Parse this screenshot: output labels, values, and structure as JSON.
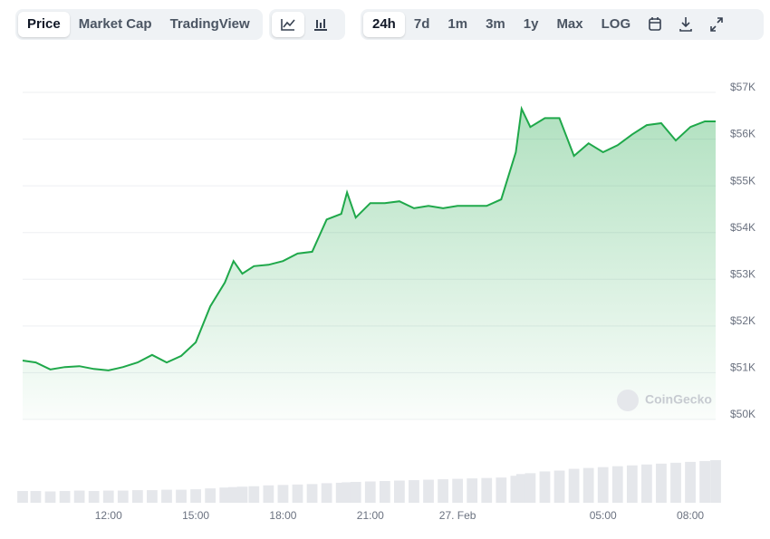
{
  "toolbar": {
    "views": [
      "Price",
      "Market Cap",
      "TradingView"
    ],
    "ranges": [
      "24h",
      "7d",
      "1m",
      "3m",
      "1y",
      "Max",
      "LOG"
    ]
  },
  "chart_data": {
    "type": "line",
    "watermark": "CoinGecko",
    "x": [
      9.05,
      9.5,
      10,
      10.5,
      11,
      11.5,
      12,
      12.5,
      13,
      13.5,
      14,
      14.5,
      15,
      15.5,
      16,
      16.3,
      16.6,
      17,
      17.5,
      18,
      18.5,
      19,
      19.5,
      20,
      20.2,
      20.5,
      21,
      21.5,
      22,
      22.5,
      23,
      23.5,
      24,
      24.5,
      25,
      25.5,
      26,
      26.2,
      26.5,
      27,
      27.5,
      28,
      28.5,
      29,
      29.5,
      30,
      30.5,
      31,
      31.5,
      32,
      32.5,
      32.87
    ],
    "series": [
      {
        "color": "#1fa84a",
        "values": [
          51260,
          51220,
          51070,
          51120,
          51140,
          51080,
          51050,
          51120,
          51220,
          51380,
          51220,
          51360,
          51650,
          52420,
          52930,
          53390,
          53120,
          53280,
          53310,
          53390,
          53550,
          53590,
          54280,
          54400,
          54860,
          54320,
          54630,
          54630,
          54670,
          54520,
          54570,
          54520,
          54570,
          54570,
          54570,
          54710,
          55720,
          56650,
          56260,
          56450,
          56450,
          55640,
          55910,
          55720,
          55870,
          56100,
          56300,
          56340,
          55970,
          56260,
          56380,
          56380
        ]
      }
    ],
    "volume": [
      27,
      27,
      26,
      27,
      28,
      27,
      28,
      28,
      29,
      29,
      30,
      30,
      31,
      33,
      35,
      36,
      37,
      38,
      40,
      41,
      42,
      43,
      45,
      46,
      47,
      48,
      49,
      50,
      51,
      52,
      53,
      54,
      55,
      56,
      57,
      58,
      62,
      66,
      68,
      72,
      74,
      78,
      80,
      82,
      84,
      86,
      88,
      90,
      92,
      94,
      96,
      98
    ],
    "volume_lim": [
      0,
      100
    ],
    "xlim": [
      9.05,
      32.87
    ],
    "ylim": [
      50000,
      57000
    ],
    "xticks": [
      {
        "value": 12,
        "label": "12:00"
      },
      {
        "value": 15,
        "label": "15:00"
      },
      {
        "value": 18,
        "label": "18:00"
      },
      {
        "value": 21,
        "label": "21:00"
      },
      {
        "value": 24,
        "label": "27. Feb"
      },
      {
        "value": 29,
        "label": "05:00"
      },
      {
        "value": 32,
        "label": "08:00"
      }
    ],
    "yticks": [
      {
        "value": 50000,
        "label": "$50K"
      },
      {
        "value": 51000,
        "label": "$51K"
      },
      {
        "value": 52000,
        "label": "$52K"
      },
      {
        "value": 53000,
        "label": "$53K"
      },
      {
        "value": 54000,
        "label": "$54K"
      },
      {
        "value": 55000,
        "label": "$55K"
      },
      {
        "value": 56000,
        "label": "$56K"
      },
      {
        "value": 57000,
        "label": "$57K"
      }
    ],
    "grid": true
  }
}
